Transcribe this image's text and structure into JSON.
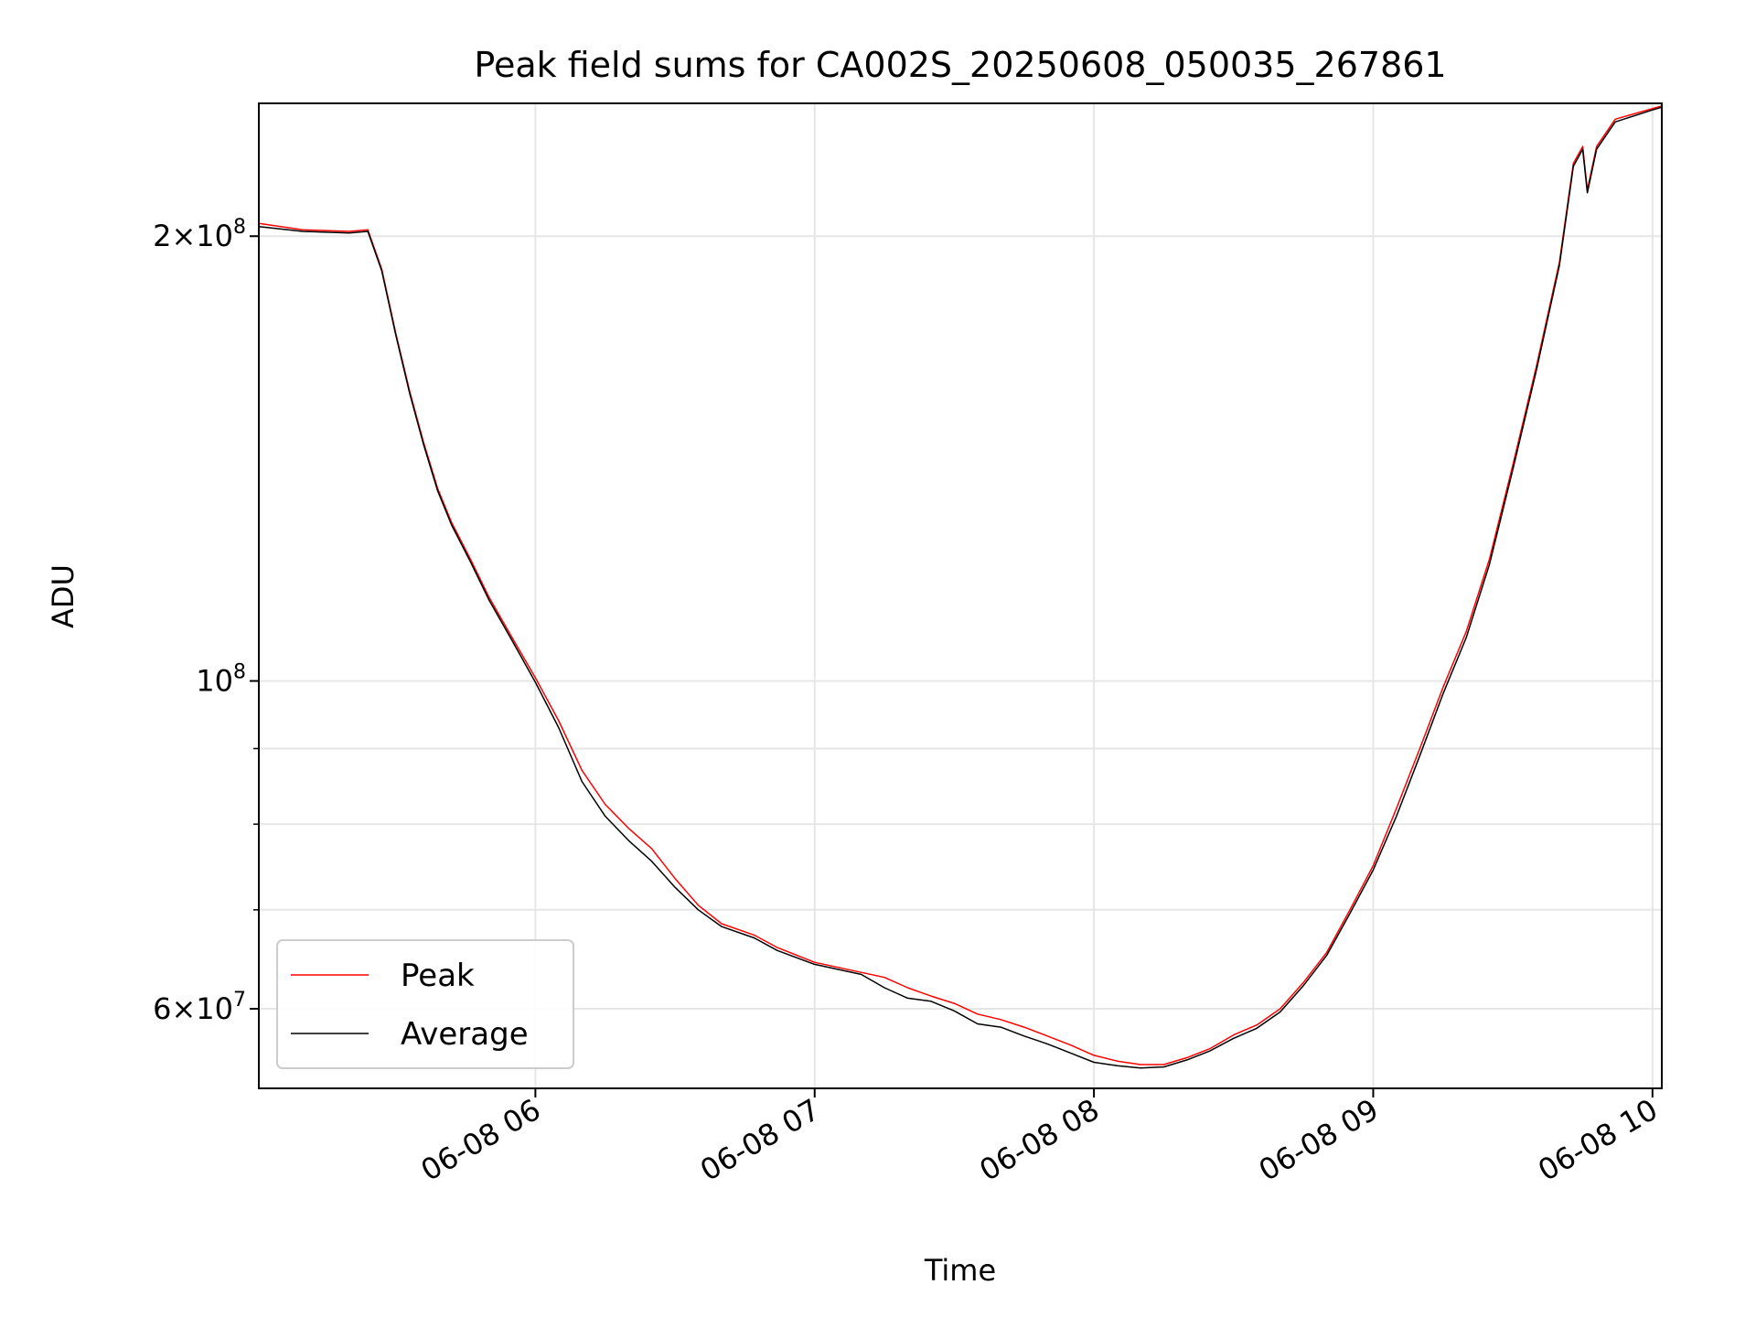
{
  "chart_data": {
    "type": "line",
    "title": "Peak field sums for CA002S_20250608_050035_267861",
    "xlabel": "Time",
    "ylabel": "ADU",
    "x_unit": "datetime",
    "xlim": [
      "2025-06-08 05:00:35",
      "2025-06-08 10:02:00"
    ],
    "ylim": [
      53000000,
      246000000
    ],
    "y_scale": "log",
    "grid": true,
    "legend_location": "lower-left",
    "x_ticks": [
      {
        "value": "2025-06-08 06:00",
        "label": "06-08 06"
      },
      {
        "value": "2025-06-08 07:00",
        "label": "06-08 07"
      },
      {
        "value": "2025-06-08 08:00",
        "label": "06-08 08"
      },
      {
        "value": "2025-06-08 09:00",
        "label": "06-08 09"
      },
      {
        "value": "2025-06-08 10:00",
        "label": "06-08 10"
      }
    ],
    "y_ticks": [
      {
        "value": 60000000,
        "base": "6",
        "exp": "7"
      },
      {
        "value": 100000000,
        "base": "",
        "exp": "8"
      },
      {
        "value": 200000000,
        "base": "2",
        "exp": "8"
      }
    ],
    "y_minor_ticks": [
      70000000,
      80000000,
      90000000
    ],
    "series": [
      {
        "name": "Peak",
        "color": "#ff0000",
        "points": [
          [
            "2025-06-08 05:00:35",
            204000000
          ],
          [
            "2025-06-08 05:10",
            202000000
          ],
          [
            "2025-06-08 05:20",
            201500000
          ],
          [
            "2025-06-08 05:24",
            202000000
          ],
          [
            "2025-06-08 05:27",
            190000000
          ],
          [
            "2025-06-08 05:30",
            172000000
          ],
          [
            "2025-06-08 05:33",
            157000000
          ],
          [
            "2025-06-08 05:36",
            145000000
          ],
          [
            "2025-06-08 05:39",
            135000000
          ],
          [
            "2025-06-08 05:42",
            128000000
          ],
          [
            "2025-06-08 05:46",
            121000000
          ],
          [
            "2025-06-08 05:50",
            114000000
          ],
          [
            "2025-06-08 05:55",
            107000000
          ],
          [
            "2025-06-08 06:00",
            100500000
          ],
          [
            "2025-06-08 06:05",
            94000000
          ],
          [
            "2025-06-08 06:10",
            87000000
          ],
          [
            "2025-06-08 06:15",
            82500000
          ],
          [
            "2025-06-08 06:20",
            79500000
          ],
          [
            "2025-06-08 06:25",
            77000000
          ],
          [
            "2025-06-08 06:30",
            73500000
          ],
          [
            "2025-06-08 06:35",
            70500000
          ],
          [
            "2025-06-08 06:40",
            68500000
          ],
          [
            "2025-06-08 06:47",
            67300000
          ],
          [
            "2025-06-08 06:52",
            66000000
          ],
          [
            "2025-06-08 07:00",
            64500000
          ],
          [
            "2025-06-08 07:10",
            63500000
          ],
          [
            "2025-06-08 07:15",
            63000000
          ],
          [
            "2025-06-08 07:20",
            62000000
          ],
          [
            "2025-06-08 07:25",
            61200000
          ],
          [
            "2025-06-08 07:30",
            60500000
          ],
          [
            "2025-06-08 07:35",
            59500000
          ],
          [
            "2025-06-08 07:40",
            59000000
          ],
          [
            "2025-06-08 07:45",
            58300000
          ],
          [
            "2025-06-08 07:50",
            57500000
          ],
          [
            "2025-06-08 07:55",
            56700000
          ],
          [
            "2025-06-08 08:00",
            55800000
          ],
          [
            "2025-06-08 08:05",
            55300000
          ],
          [
            "2025-06-08 08:10",
            55000000
          ],
          [
            "2025-06-08 08:15",
            55000000
          ],
          [
            "2025-06-08 08:20",
            55600000
          ],
          [
            "2025-06-08 08:25",
            56400000
          ],
          [
            "2025-06-08 08:30",
            57600000
          ],
          [
            "2025-06-08 08:35",
            58500000
          ],
          [
            "2025-06-08 08:40",
            60000000
          ],
          [
            "2025-06-08 08:45",
            62500000
          ],
          [
            "2025-06-08 08:50",
            65500000
          ],
          [
            "2025-06-08 08:55",
            70000000
          ],
          [
            "2025-06-08 09:00",
            75000000
          ],
          [
            "2025-06-08 09:05",
            82000000
          ],
          [
            "2025-06-08 09:10",
            90000000
          ],
          [
            "2025-06-08 09:15",
            99000000
          ],
          [
            "2025-06-08 09:20",
            108000000
          ],
          [
            "2025-06-08 09:25",
            121000000
          ],
          [
            "2025-06-08 09:30",
            140000000
          ],
          [
            "2025-06-08 09:35",
            163000000
          ],
          [
            "2025-06-08 09:40",
            192000000
          ],
          [
            "2025-06-08 09:43",
            224000000
          ],
          [
            "2025-06-08 09:45",
            230000000
          ],
          [
            "2025-06-08 09:46",
            215000000
          ],
          [
            "2025-06-08 09:48",
            230000000
          ],
          [
            "2025-06-08 09:52",
            240000000
          ],
          [
            "2025-06-08 10:00",
            244000000
          ],
          [
            "2025-06-08 10:02",
            245000000
          ]
        ]
      },
      {
        "name": "Average",
        "color": "#000000",
        "points": [
          [
            "2025-06-08 05:00:35",
            203000000
          ],
          [
            "2025-06-08 05:10",
            201500000
          ],
          [
            "2025-06-08 05:20",
            201000000
          ],
          [
            "2025-06-08 05:24",
            201500000
          ],
          [
            "2025-06-08 05:27",
            189500000
          ],
          [
            "2025-06-08 05:30",
            171500000
          ],
          [
            "2025-06-08 05:33",
            156500000
          ],
          [
            "2025-06-08 05:36",
            144500000
          ],
          [
            "2025-06-08 05:39",
            134500000
          ],
          [
            "2025-06-08 05:42",
            127500000
          ],
          [
            "2025-06-08 05:46",
            120500000
          ],
          [
            "2025-06-08 05:50",
            113500000
          ],
          [
            "2025-06-08 05:55",
            106500000
          ],
          [
            "2025-06-08 06:00",
            99800000
          ],
          [
            "2025-06-08 06:05",
            93000000
          ],
          [
            "2025-06-08 06:10",
            85500000
          ],
          [
            "2025-06-08 06:15",
            81000000
          ],
          [
            "2025-06-08 06:20",
            78000000
          ],
          [
            "2025-06-08 06:25",
            75500000
          ],
          [
            "2025-06-08 06:30",
            72500000
          ],
          [
            "2025-06-08 06:35",
            70000000
          ],
          [
            "2025-06-08 06:40",
            68200000
          ],
          [
            "2025-06-08 06:47",
            67000000
          ],
          [
            "2025-06-08 06:52",
            65700000
          ],
          [
            "2025-06-08 07:00",
            64300000
          ],
          [
            "2025-06-08 07:10",
            63300000
          ],
          [
            "2025-06-08 07:15",
            62000000
          ],
          [
            "2025-06-08 07:20",
            61000000
          ],
          [
            "2025-06-08 07:25",
            60700000
          ],
          [
            "2025-06-08 07:30",
            59800000
          ],
          [
            "2025-06-08 07:35",
            58600000
          ],
          [
            "2025-06-08 07:40",
            58300000
          ],
          [
            "2025-06-08 07:45",
            57500000
          ],
          [
            "2025-06-08 07:50",
            56800000
          ],
          [
            "2025-06-08 07:55",
            56000000
          ],
          [
            "2025-06-08 08:00",
            55200000
          ],
          [
            "2025-06-08 08:05",
            54900000
          ],
          [
            "2025-06-08 08:10",
            54700000
          ],
          [
            "2025-06-08 08:15",
            54800000
          ],
          [
            "2025-06-08 08:20",
            55400000
          ],
          [
            "2025-06-08 08:25",
            56200000
          ],
          [
            "2025-06-08 08:30",
            57300000
          ],
          [
            "2025-06-08 08:35",
            58200000
          ],
          [
            "2025-06-08 08:40",
            59700000
          ],
          [
            "2025-06-08 08:45",
            62200000
          ],
          [
            "2025-06-08 08:50",
            65200000
          ],
          [
            "2025-06-08 08:55",
            69600000
          ],
          [
            "2025-06-08 09:00",
            74500000
          ],
          [
            "2025-06-08 09:05",
            81000000
          ],
          [
            "2025-06-08 09:10",
            89000000
          ],
          [
            "2025-06-08 09:15",
            98000000
          ],
          [
            "2025-06-08 09:20",
            107000000
          ],
          [
            "2025-06-08 09:25",
            120000000
          ],
          [
            "2025-06-08 09:30",
            139000000
          ],
          [
            "2025-06-08 09:35",
            162000000
          ],
          [
            "2025-06-08 09:40",
            191000000
          ],
          [
            "2025-06-08 09:43",
            223000000
          ],
          [
            "2025-06-08 09:45",
            229000000
          ],
          [
            "2025-06-08 09:46",
            214000000
          ],
          [
            "2025-06-08 09:48",
            229000000
          ],
          [
            "2025-06-08 09:52",
            239000000
          ],
          [
            "2025-06-08 10:00",
            243500000
          ],
          [
            "2025-06-08 10:02",
            244500000
          ]
        ]
      }
    ]
  }
}
